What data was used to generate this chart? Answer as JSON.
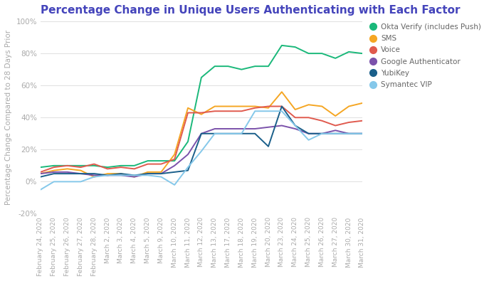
{
  "title": "Percentage Change in Unique Users Authenticating with Each Factor",
  "ylabel": "Percentage Change Compared to 28 Days Prior",
  "ylim": [
    -20,
    100
  ],
  "yticks": [
    -20,
    0,
    20,
    40,
    60,
    80,
    100
  ],
  "ytick_labels": [
    "-20%",
    "0%",
    "20%",
    "40%",
    "60%",
    "80%",
    "100%"
  ],
  "background_color": "#ffffff",
  "title_color": "#4444bb",
  "title_fontsize": 11,
  "xlabel_dates": [
    "February 24, 2020",
    "February 25, 2020",
    "February 26, 2020",
    "February 27, 2020",
    "February 28, 2020",
    "March 2, 2020",
    "March 3, 2020",
    "March 4, 2020",
    "March 5, 2020",
    "March 9, 2020",
    "March 10, 2020",
    "March 11, 2020",
    "March 12, 2020",
    "March 13, 2020",
    "March 17, 2020",
    "March 18, 2020",
    "March 19, 2020",
    "March 20, 2020",
    "March 23, 2020",
    "March 24, 2020",
    "March 25, 2020",
    "March 26, 2020",
    "March 27, 2020",
    "March 30, 2020",
    "March 31, 2020"
  ],
  "series": [
    {
      "label": "Okta Verify (includes Push)",
      "color": "#1ab87a",
      "data": [
        9,
        10,
        10,
        10,
        10,
        9,
        10,
        10,
        13,
        13,
        13,
        25,
        65,
        72,
        72,
        70,
        72,
        72,
        85,
        84,
        80,
        80,
        77,
        81,
        80
      ]
    },
    {
      "label": "SMS",
      "color": "#f5a623",
      "data": [
        5,
        7,
        8,
        7,
        3,
        5,
        5,
        3,
        6,
        6,
        17,
        46,
        42,
        47,
        47,
        47,
        47,
        46,
        56,
        45,
        48,
        47,
        41,
        47,
        49
      ]
    },
    {
      "label": "Voice",
      "color": "#e05a4e",
      "data": [
        6,
        9,
        10,
        9,
        11,
        8,
        9,
        8,
        11,
        11,
        14,
        43,
        43,
        44,
        44,
        44,
        46,
        47,
        47,
        40,
        40,
        38,
        35,
        37,
        38
      ]
    },
    {
      "label": "Google Authenticator",
      "color": "#7b52ab",
      "data": [
        5,
        6,
        6,
        5,
        4,
        4,
        4,
        3,
        5,
        5,
        10,
        17,
        30,
        33,
        33,
        33,
        33,
        34,
        35,
        33,
        30,
        30,
        32,
        30,
        30
      ]
    },
    {
      "label": "YubiKey",
      "color": "#1a5f8a",
      "data": [
        3,
        5,
        5,
        5,
        5,
        4,
        5,
        4,
        5,
        5,
        6,
        7,
        30,
        30,
        30,
        30,
        30,
        22,
        47,
        35,
        30,
        30,
        30,
        30,
        30
      ]
    },
    {
      "label": "Symantec VIP",
      "color": "#85c8ea",
      "data": [
        -5,
        0,
        0,
        0,
        3,
        4,
        4,
        4,
        4,
        3,
        -2,
        9,
        19,
        30,
        30,
        30,
        44,
        44,
        44,
        35,
        26,
        30,
        30,
        30,
        30
      ]
    }
  ]
}
